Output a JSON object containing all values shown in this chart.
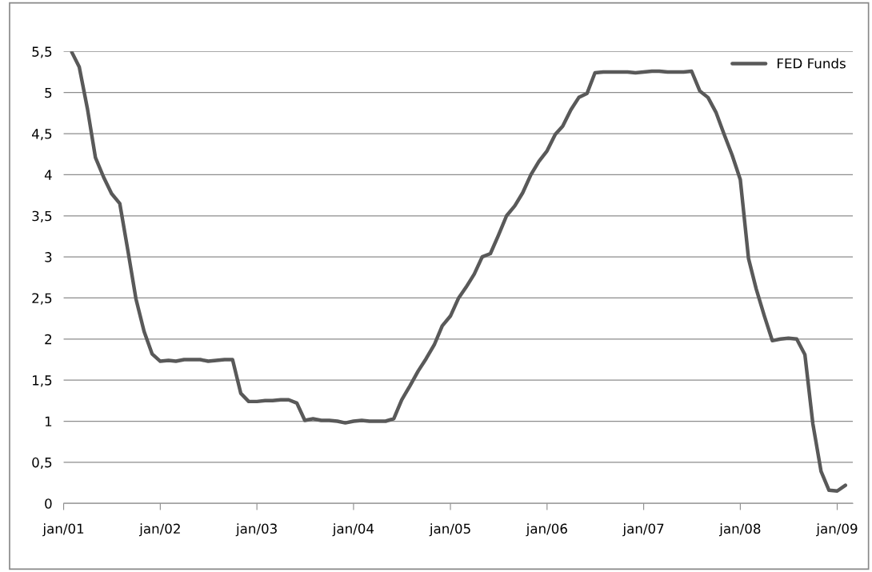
{
  "chart_data": {
    "type": "line",
    "x": [
      "2001-02",
      "2001-03",
      "2001-04",
      "2001-05",
      "2001-06",
      "2001-07",
      "2001-08",
      "2001-09",
      "2001-10",
      "2001-11",
      "2001-12",
      "2002-01",
      "2002-02",
      "2002-03",
      "2002-04",
      "2002-05",
      "2002-06",
      "2002-07",
      "2002-08",
      "2002-09",
      "2002-10",
      "2002-11",
      "2002-12",
      "2003-01",
      "2003-02",
      "2003-03",
      "2003-04",
      "2003-05",
      "2003-06",
      "2003-07",
      "2003-08",
      "2003-09",
      "2003-10",
      "2003-11",
      "2003-12",
      "2004-01",
      "2004-02",
      "2004-03",
      "2004-04",
      "2004-05",
      "2004-06",
      "2004-07",
      "2004-08",
      "2004-09",
      "2004-10",
      "2004-11",
      "2004-12",
      "2005-01",
      "2005-02",
      "2005-03",
      "2005-04",
      "2005-05",
      "2005-06",
      "2005-07",
      "2005-08",
      "2005-09",
      "2005-10",
      "2005-11",
      "2005-12",
      "2006-01",
      "2006-02",
      "2006-03",
      "2006-04",
      "2006-05",
      "2006-06",
      "2006-07",
      "2006-08",
      "2006-09",
      "2006-10",
      "2006-11",
      "2006-12",
      "2007-01",
      "2007-02",
      "2007-03",
      "2007-04",
      "2007-05",
      "2007-06",
      "2007-07",
      "2007-08",
      "2007-09",
      "2007-10",
      "2007-11",
      "2007-12",
      "2008-01",
      "2008-02",
      "2008-03",
      "2008-04",
      "2008-05",
      "2008-06",
      "2008-07",
      "2008-08",
      "2008-09",
      "2008-10",
      "2008-11",
      "2008-12",
      "2009-01",
      "2009-02"
    ],
    "series": [
      {
        "name": "FED Funds",
        "color": "#595959",
        "values": [
          5.49,
          5.31,
          4.8,
          4.21,
          3.97,
          3.77,
          3.65,
          3.07,
          2.49,
          2.09,
          1.82,
          1.73,
          1.74,
          1.73,
          1.75,
          1.75,
          1.75,
          1.73,
          1.74,
          1.75,
          1.75,
          1.34,
          1.24,
          1.24,
          1.25,
          1.25,
          1.26,
          1.26,
          1.22,
          1.01,
          1.03,
          1.01,
          1.01,
          1.0,
          0.98,
          1.0,
          1.01,
          1.0,
          1.0,
          1.0,
          1.03,
          1.26,
          1.43,
          1.61,
          1.76,
          1.93,
          2.16,
          2.28,
          2.5,
          2.63,
          2.79,
          3.0,
          3.04,
          3.26,
          3.5,
          3.62,
          3.78,
          4.0,
          4.16,
          4.29,
          4.49,
          4.59,
          4.79,
          4.94,
          4.99,
          5.24,
          5.25,
          5.25,
          5.25,
          5.25,
          5.24,
          5.25,
          5.26,
          5.26,
          5.25,
          5.25,
          5.25,
          5.26,
          5.02,
          4.94,
          4.76,
          4.49,
          4.24,
          3.94,
          2.98,
          2.61,
          2.28,
          1.98,
          2.0,
          2.01,
          2.0,
          1.81,
          0.97,
          0.39,
          0.16,
          0.15,
          0.22
        ]
      }
    ],
    "xlim": [
      "2001-01",
      "2009-03"
    ],
    "xticks": [
      {
        "value": "2001-01",
        "label": "jan/01"
      },
      {
        "value": "2002-01",
        "label": "jan/02"
      },
      {
        "value": "2003-01",
        "label": "jan/03"
      },
      {
        "value": "2004-01",
        "label": "jan/04"
      },
      {
        "value": "2005-01",
        "label": "jan/05"
      },
      {
        "value": "2006-01",
        "label": "jan/06"
      },
      {
        "value": "2007-01",
        "label": "jan/07"
      },
      {
        "value": "2008-01",
        "label": "jan/08"
      },
      {
        "value": "2009-01",
        "label": "jan/09"
      }
    ],
    "ylim": [
      0,
      5.5
    ],
    "yticks": [
      0,
      {
        "value": 0.5,
        "label": "0,5"
      },
      1,
      {
        "value": 1.5,
        "label": "1,5"
      },
      2,
      {
        "value": 2.5,
        "label": "2,5"
      },
      3,
      {
        "value": 3.5,
        "label": "3,5"
      },
      4,
      {
        "value": 4.5,
        "label": "4,5"
      },
      5,
      {
        "value": 5.5,
        "label": "5,5"
      }
    ],
    "grid": "y",
    "legend": "top right",
    "marker": "none",
    "line_style": "solid"
  }
}
